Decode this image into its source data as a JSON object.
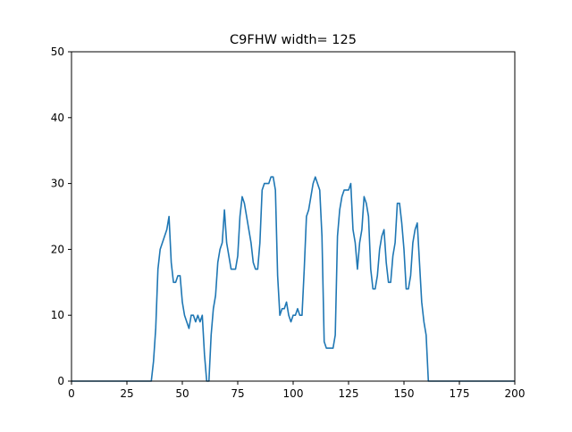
{
  "chart_data": {
    "type": "line",
    "title": "C9FHW width= 125",
    "xlabel": "",
    "ylabel": "",
    "xlim": [
      0,
      200
    ],
    "ylim": [
      0,
      50
    ],
    "x_ticks": [
      0,
      25,
      50,
      75,
      100,
      125,
      150,
      175,
      200
    ],
    "y_ticks": [
      0,
      10,
      20,
      30,
      40,
      50
    ],
    "grid": false,
    "legend": "none",
    "colors": {
      "line": "#1f77b4",
      "axes": "#000000",
      "background": "#ffffff"
    },
    "series": [
      {
        "name": "C9FHW",
        "x": [
          0,
          1,
          2,
          3,
          4,
          5,
          6,
          7,
          8,
          9,
          10,
          11,
          12,
          13,
          14,
          15,
          16,
          17,
          18,
          19,
          20,
          21,
          22,
          23,
          24,
          25,
          26,
          27,
          28,
          29,
          30,
          31,
          32,
          33,
          34,
          35,
          36,
          37,
          38,
          39,
          40,
          41,
          42,
          43,
          44,
          45,
          46,
          47,
          48,
          49,
          50,
          51,
          52,
          53,
          54,
          55,
          56,
          57,
          58,
          59,
          60,
          61,
          62,
          63,
          64,
          65,
          66,
          67,
          68,
          69,
          70,
          71,
          72,
          73,
          74,
          75,
          76,
          77,
          78,
          79,
          80,
          81,
          82,
          83,
          84,
          85,
          86,
          87,
          88,
          89,
          90,
          91,
          92,
          93,
          94,
          95,
          96,
          97,
          98,
          99,
          100,
          101,
          102,
          103,
          104,
          105,
          106,
          107,
          108,
          109,
          110,
          111,
          112,
          113,
          114,
          115,
          116,
          117,
          118,
          119,
          120,
          121,
          122,
          123,
          124,
          125,
          126,
          127,
          128,
          129,
          130,
          131,
          132,
          133,
          134,
          135,
          136,
          137,
          138,
          139,
          140,
          141,
          142,
          143,
          144,
          145,
          146,
          147,
          148,
          149,
          150,
          151,
          152,
          153,
          154,
          155,
          156,
          157,
          158,
          159,
          160,
          161,
          162,
          163,
          164,
          165,
          166,
          167,
          168,
          169,
          170,
          171,
          172,
          173,
          174,
          175,
          176,
          177,
          178,
          179,
          180,
          181,
          182,
          183,
          184,
          185,
          186,
          187,
          188,
          189,
          190,
          191,
          192,
          193,
          194,
          195,
          196,
          197,
          198,
          199,
          200
        ],
        "y": [
          0,
          0,
          0,
          0,
          0,
          0,
          0,
          0,
          0,
          0,
          0,
          0,
          0,
          0,
          0,
          0,
          0,
          0,
          0,
          0,
          0,
          0,
          0,
          0,
          0,
          0,
          0,
          0,
          0,
          0,
          0,
          0,
          0,
          0,
          0,
          0,
          0,
          3,
          8,
          17,
          20,
          21,
          22,
          23,
          25,
          18,
          15,
          15,
          16,
          16,
          12,
          10,
          9,
          8,
          10,
          10,
          9,
          10,
          9,
          10,
          4,
          0,
          0,
          7,
          11,
          13,
          18,
          20,
          21,
          26,
          21,
          19,
          17,
          17,
          17,
          19,
          25,
          28,
          27,
          25,
          23,
          21,
          18,
          17,
          17,
          21,
          29,
          30,
          30,
          30,
          31,
          31,
          29,
          16,
          10,
          11,
          11,
          12,
          10,
          9,
          10,
          10,
          11,
          10,
          10,
          17,
          25,
          26,
          28,
          30,
          31,
          30,
          29,
          22,
          6,
          5,
          5,
          5,
          5,
          7,
          22,
          26,
          28,
          29,
          29,
          29,
          30,
          23,
          21,
          17,
          21,
          23,
          28,
          27,
          25,
          17,
          14,
          14,
          16,
          20,
          22,
          23,
          18,
          15,
          15,
          19,
          21,
          27,
          27,
          24,
          20,
          14,
          14,
          16,
          21,
          23,
          24,
          18,
          12,
          9,
          7,
          0,
          0,
          0,
          0,
          0,
          0,
          0,
          0,
          0,
          0,
          0,
          0,
          0,
          0,
          0,
          0,
          0,
          0,
          0,
          0,
          0,
          0,
          0,
          0,
          0,
          0,
          0,
          0,
          0,
          0,
          0,
          0,
          0,
          0,
          0,
          0,
          0,
          0,
          0,
          0
        ]
      }
    ]
  }
}
